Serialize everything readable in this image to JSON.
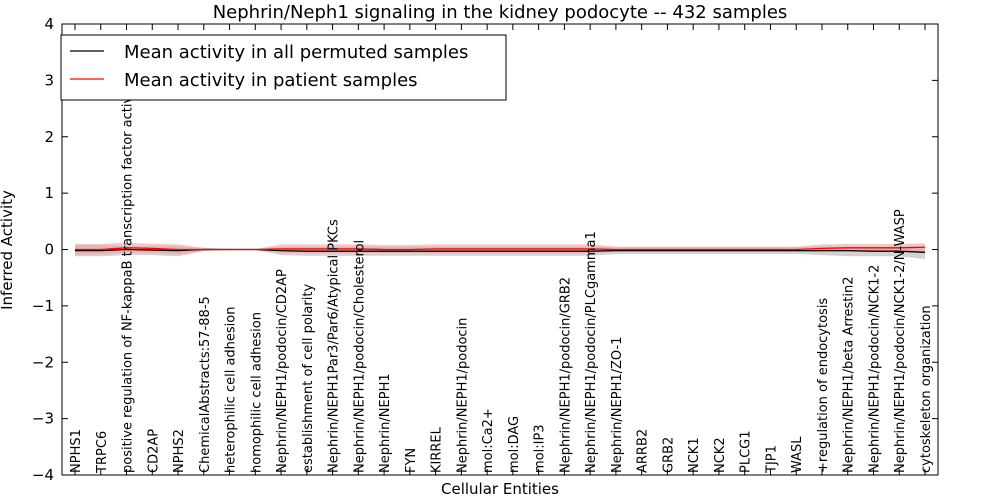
{
  "chart_data": {
    "type": "line",
    "title": "Nephrin/Neph1 signaling in the kidney podocyte -- 432 samples",
    "xlabel": "Cellular Entities",
    "ylabel": "Inferred Activity",
    "ylim": [
      -4,
      4
    ],
    "yticks": [
      -4,
      -3,
      -2,
      -1,
      0,
      1,
      2,
      3,
      4
    ],
    "ytick_labels": [
      "−4",
      "−3",
      "−2",
      "−1",
      "0",
      "1",
      "2",
      "3",
      "4"
    ],
    "grid": false,
    "legend_position": "top-left",
    "categories": [
      "NPHS1",
      "TRPC6",
      "positive regulation of NF-kappaB transcription factor activity",
      "CD2AP",
      "NPHS2",
      "ChemicalAbstracts:57-88-5",
      "heterophilic cell adhesion",
      "homophilic cell adhesion",
      "Nephrin/NEPH1/podocin/CD2AP",
      "establishment of cell polarity",
      "Nephrin/NEPH1Par3/Par6/Atypical PKCs",
      "Nephrin/NEPH1/podocin/Cholesterol",
      "Nephrin/NEPH1",
      "FYN",
      "KIRREL",
      "Nephrin/NEPH1/podocin",
      "mol:Ca2+",
      "mol:DAG",
      "mol:IP3",
      "Nephrin/NEPH1/podocin/GRB2",
      "Nephrin/NEPH1/podocin/PLCgamma1",
      "Nephrin/NEPH1/ZO-1",
      "ARRB2",
      "GRB2",
      "NCK1",
      "NCK2",
      "PLCG1",
      "TJP1",
      "WASL",
      "+regulation of endocytosis",
      "Nephrin/NEPH1/beta Arrestin2",
      "Nephrin/NEPH1/podocin/NCK1-2",
      "Nephrin/NEPH1/podocin/NCK1-2/N-WASP",
      "cytoskeleton organization"
    ],
    "series": [
      {
        "name": "Mean activity in all permuted samples",
        "color": "#000000",
        "band_color": "#c8c8c8",
        "values": [
          -0.02,
          -0.02,
          0.0,
          -0.01,
          -0.02,
          0.0,
          0.0,
          0.0,
          -0.02,
          -0.03,
          -0.03,
          -0.03,
          -0.03,
          -0.03,
          -0.03,
          -0.03,
          -0.03,
          -0.03,
          -0.03,
          -0.03,
          -0.03,
          -0.02,
          -0.02,
          -0.02,
          -0.02,
          -0.02,
          -0.02,
          -0.02,
          -0.02,
          -0.02,
          -0.02,
          -0.03,
          -0.03,
          -0.05
        ],
        "upper": [
          0.08,
          0.08,
          0.06,
          0.06,
          0.06,
          0.02,
          0.01,
          0.01,
          0.05,
          0.05,
          0.05,
          0.05,
          0.05,
          0.05,
          0.05,
          0.05,
          0.05,
          0.05,
          0.05,
          0.05,
          0.05,
          0.04,
          0.04,
          0.04,
          0.04,
          0.04,
          0.04,
          0.04,
          0.04,
          0.05,
          0.05,
          0.05,
          0.05,
          0.06
        ],
        "lower": [
          -0.12,
          -0.12,
          -0.1,
          -0.1,
          -0.12,
          -0.03,
          -0.01,
          -0.01,
          -0.1,
          -0.11,
          -0.11,
          -0.11,
          -0.11,
          -0.11,
          -0.11,
          -0.11,
          -0.11,
          -0.11,
          -0.11,
          -0.11,
          -0.11,
          -0.08,
          -0.08,
          -0.08,
          -0.08,
          -0.08,
          -0.08,
          -0.08,
          -0.08,
          -0.1,
          -0.12,
          -0.12,
          -0.12,
          -0.17
        ]
      },
      {
        "name": "Mean activity in patient samples",
        "color": "#ff0000",
        "band_color": "#f4a0a0",
        "values": [
          0.0,
          0.0,
          0.03,
          0.02,
          0.0,
          0.0,
          0.0,
          0.0,
          0.01,
          0.01,
          0.01,
          0.01,
          0.0,
          0.0,
          0.01,
          0.01,
          0.01,
          0.01,
          0.01,
          0.01,
          0.01,
          0.0,
          0.0,
          0.0,
          0.0,
          0.0,
          0.0,
          0.0,
          0.0,
          0.02,
          0.03,
          0.03,
          0.03,
          0.04
        ],
        "upper": [
          0.1,
          0.1,
          0.12,
          0.1,
          0.09,
          0.03,
          0.01,
          0.01,
          0.09,
          0.09,
          0.09,
          0.09,
          0.08,
          0.08,
          0.09,
          0.09,
          0.09,
          0.09,
          0.09,
          0.09,
          0.09,
          0.05,
          0.05,
          0.05,
          0.05,
          0.05,
          0.05,
          0.05,
          0.05,
          0.09,
          0.1,
          0.1,
          0.1,
          0.11
        ],
        "lower": [
          -0.09,
          -0.09,
          -0.05,
          -0.06,
          -0.09,
          -0.02,
          -0.01,
          -0.01,
          -0.06,
          -0.06,
          -0.06,
          -0.06,
          -0.06,
          -0.06,
          -0.06,
          -0.06,
          -0.06,
          -0.06,
          -0.06,
          -0.06,
          -0.06,
          -0.04,
          -0.04,
          -0.04,
          -0.04,
          -0.04,
          -0.04,
          -0.04,
          -0.04,
          -0.05,
          -0.04,
          -0.04,
          -0.04,
          -0.03
        ]
      }
    ]
  }
}
